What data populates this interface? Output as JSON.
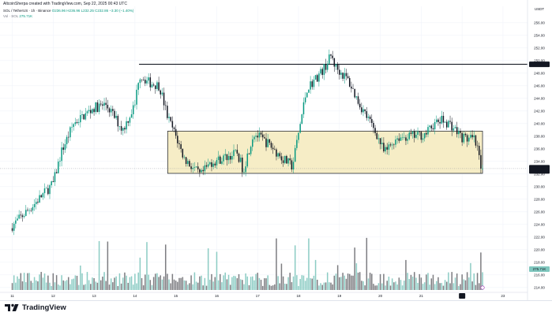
{
  "header": {
    "credit": "AltcoinSherpa created with TradingView.com, Sep 22, 2025 00:43 UTC",
    "symbol": "SOL / TetherUS · 1h · Binance",
    "ohlc": "O236.96 H236.96 L232.25 C232.86 −3.30 (−1.40%)",
    "volume_label": "Vol · SOL",
    "volume_value": "275.71K"
  },
  "footer": {
    "brand": "TradingView"
  },
  "colors": {
    "up": "#089981",
    "down": "#131722",
    "zone_fill": "#f6edc6",
    "zone_stroke": "#131722",
    "grid": "#f0f3fa",
    "vol_up": "#7fc7be",
    "vol_down": "#6f6f73"
  },
  "chart_data": {
    "type": "candlestick",
    "currency": "USDT",
    "x": [
      "11",
      "12",
      "13",
      "14",
      "15",
      "16",
      "17",
      "18",
      "19",
      "20",
      "21",
      "22",
      "23"
    ],
    "y_ticks": [
      256.0,
      254.0,
      252.0,
      250.0,
      248.0,
      246.0,
      244.0,
      242.0,
      240.0,
      238.0,
      236.0,
      234.0,
      232.0,
      230.0,
      228.0,
      226.0,
      224.0,
      222.0,
      220.0,
      218.0,
      216.0,
      214.0
    ],
    "ylim": [
      213.6,
      258.6
    ],
    "resistance": {
      "label": "249.40",
      "value": 249.4,
      "from_day": 14.1
    },
    "range_zone": {
      "top": 238.8,
      "bottom": 232.1,
      "from_day": 14.8,
      "to_day": 22.5
    },
    "last_price": {
      "label": "232.86",
      "countdown": "16:47",
      "value": 232.86
    },
    "volume_label": "275.71K",
    "price_path": [
      [
        11.0,
        223.8
      ],
      [
        11.5,
        227.0
      ],
      [
        12.0,
        230.5
      ],
      [
        12.2,
        235.5
      ],
      [
        12.5,
        240.0
      ],
      [
        13.0,
        242.5
      ],
      [
        13.3,
        243.0
      ],
      [
        13.7,
        239.0
      ],
      [
        14.0,
        243.0
      ],
      [
        14.1,
        247.8
      ],
      [
        14.35,
        246.5
      ],
      [
        14.6,
        246.0
      ],
      [
        14.8,
        241.0
      ],
      [
        15.0,
        238.0
      ],
      [
        15.2,
        234.5
      ],
      [
        15.6,
        231.7
      ],
      [
        15.85,
        233.8
      ],
      [
        16.2,
        234.6
      ],
      [
        16.5,
        235.3
      ],
      [
        16.65,
        232.6
      ],
      [
        16.9,
        238.5
      ],
      [
        17.3,
        236.6
      ],
      [
        17.6,
        234.5
      ],
      [
        17.85,
        233.2
      ],
      [
        18.0,
        238.5
      ],
      [
        18.2,
        245.5
      ],
      [
        18.6,
        248.5
      ],
      [
        18.8,
        250.8
      ],
      [
        18.9,
        249.0
      ],
      [
        19.2,
        247.0
      ],
      [
        19.5,
        243.0
      ],
      [
        19.9,
        238.5
      ],
      [
        20.1,
        235.3
      ],
      [
        20.4,
        237.8
      ],
      [
        20.8,
        238.0
      ],
      [
        21.1,
        238.3
      ],
      [
        21.3,
        239.8
      ],
      [
        21.5,
        240.5
      ],
      [
        21.7,
        240.0
      ],
      [
        22.0,
        237.8
      ],
      [
        22.3,
        237.4
      ],
      [
        22.5,
        232.86
      ]
    ]
  }
}
